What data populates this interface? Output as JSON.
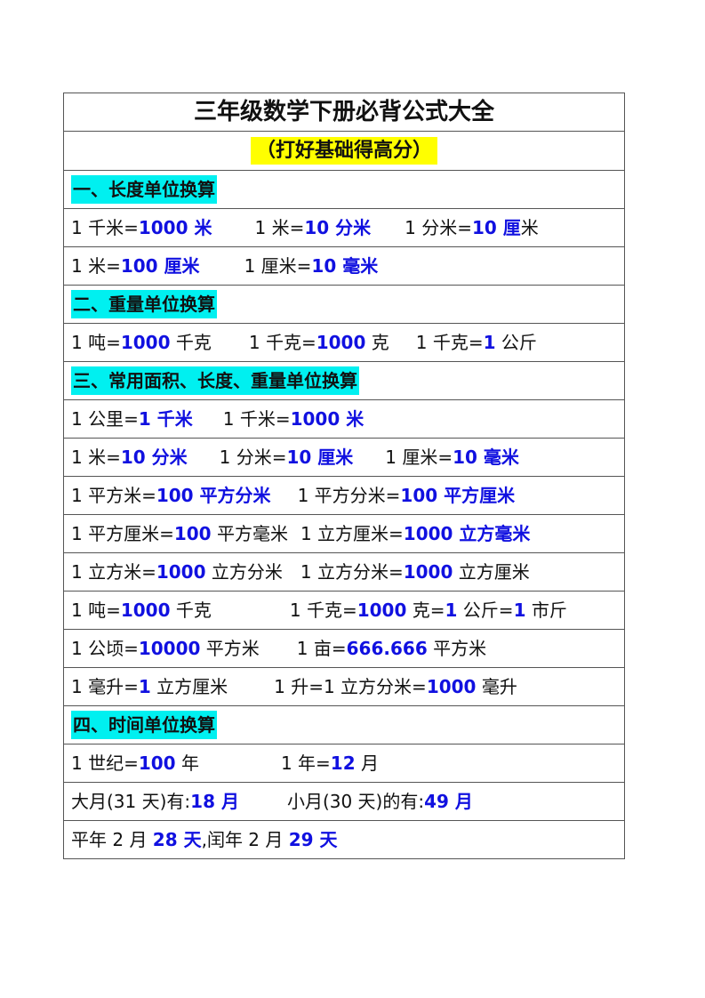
{
  "title": "三年级数学下册必背公式大全",
  "subtitle": "（打好基础得高分）",
  "accent_blue": "#1010e0",
  "highlight_yellow": "#ffff00",
  "highlight_cyan": "#00f0f0",
  "rows": [
    {
      "section": "一、长度单位换算"
    },
    {
      "groups": [
        [
          [
            "1 千米=",
            0
          ],
          [
            "1000 米",
            1
          ]
        ],
        [
          [
            "1 米=",
            0
          ],
          [
            "10 分米",
            1
          ]
        ],
        [
          [
            "1 分米=",
            0
          ],
          [
            "10 厘",
            1
          ],
          [
            "米",
            0
          ]
        ]
      ]
    },
    {
      "groups": [
        [
          [
            "1 米=",
            0
          ],
          [
            "100 厘米",
            1
          ]
        ],
        [
          [
            "1 厘米=",
            0
          ],
          [
            "10 毫米",
            1
          ]
        ]
      ]
    },
    {
      "section": "二、重量单位换算"
    },
    {
      "groups": [
        [
          [
            "1 吨=",
            0
          ],
          [
            "1000",
            1
          ],
          [
            " 千克",
            0
          ]
        ],
        [
          [
            "1 千克=",
            0
          ],
          [
            "1000",
            1
          ],
          [
            " 克",
            0
          ]
        ],
        [
          [
            "1 千克=",
            0
          ],
          [
            "1",
            1
          ],
          [
            " 公斤",
            0
          ]
        ]
      ]
    },
    {
      "section": "三、常用面积、长度、重量单位换算"
    },
    {
      "groups": [
        [
          [
            "1 公里=",
            0
          ],
          [
            "1 千米",
            1
          ]
        ],
        [
          [
            "1 千米=",
            0
          ],
          [
            "1000 米",
            1
          ]
        ]
      ]
    },
    {
      "groups": [
        [
          [
            "1 米=",
            0
          ],
          [
            "10 分米",
            1
          ]
        ],
        [
          [
            "1 分米=",
            0
          ],
          [
            "10 厘米",
            1
          ]
        ],
        [
          [
            "1 厘米=",
            0
          ],
          [
            "10 毫米",
            1
          ]
        ]
      ]
    },
    {
      "groups": [
        [
          [
            "1 平方米=",
            0
          ],
          [
            "100 平方分米",
            1
          ]
        ],
        [
          [
            "1 平方分米=",
            0
          ],
          [
            "100 平方厘米",
            1
          ]
        ]
      ]
    },
    {
      "groups": [
        [
          [
            "1 平方厘米=",
            0
          ],
          [
            "100",
            1
          ],
          [
            " 平方毫米",
            0
          ]
        ],
        [
          [
            "1 立方厘米=",
            0
          ],
          [
            "1000 立方毫米",
            1
          ]
        ]
      ]
    },
    {
      "groups": [
        [
          [
            "1 立方米=",
            0
          ],
          [
            "1000",
            1
          ],
          [
            " 立方分米",
            0
          ]
        ],
        [
          [
            "1 立方分米=",
            0
          ],
          [
            "1000",
            1
          ],
          [
            " 立方厘米",
            0
          ]
        ]
      ]
    },
    {
      "wrap": true,
      "groups": [
        [
          [
            "1 吨=",
            0
          ],
          [
            "1000",
            1
          ],
          [
            " 千克",
            0
          ]
        ],
        [
          [
            "1 千克=",
            0
          ],
          [
            "1000",
            1
          ],
          [
            " 克=",
            0
          ],
          [
            "1",
            1
          ],
          [
            " 公斤=",
            0
          ],
          [
            "1",
            1
          ],
          [
            " 市斤",
            0
          ]
        ]
      ]
    },
    {
      "groups": [
        [
          [
            "1 公顷=",
            0
          ],
          [
            "10000",
            1
          ],
          [
            " 平方米",
            0
          ]
        ],
        [
          [
            "1 亩=",
            0
          ],
          [
            "666.666",
            1
          ],
          [
            " 平方米",
            0
          ]
        ]
      ]
    },
    {
      "groups": [
        [
          [
            "1 毫升=",
            0
          ],
          [
            "1",
            1
          ],
          [
            " 立方厘米",
            0
          ]
        ],
        [
          [
            "1 升=1 立方分米=",
            0
          ],
          [
            "1000",
            1
          ],
          [
            " 毫升",
            0
          ]
        ]
      ]
    },
    {
      "section": "四、时间单位换算"
    },
    {
      "groups": [
        [
          [
            "1 世纪=",
            0
          ],
          [
            "100",
            1
          ],
          [
            " 年",
            0
          ]
        ],
        [
          [
            "1 年=",
            0
          ],
          [
            "12",
            1
          ],
          [
            " 月",
            0
          ]
        ]
      ]
    },
    {
      "groups": [
        [
          [
            "大月(31 天)有:",
            0
          ],
          [
            "18 月",
            1
          ]
        ],
        [
          [
            "小月(30 天)的有:",
            0
          ],
          [
            "49 月",
            1
          ]
        ]
      ]
    },
    {
      "groups": [
        [
          [
            "平年 2 月 ",
            0
          ],
          [
            "28 天",
            1
          ],
          [
            ",闰年 2 月 ",
            0
          ],
          [
            "29 天",
            1
          ]
        ]
      ]
    }
  ]
}
